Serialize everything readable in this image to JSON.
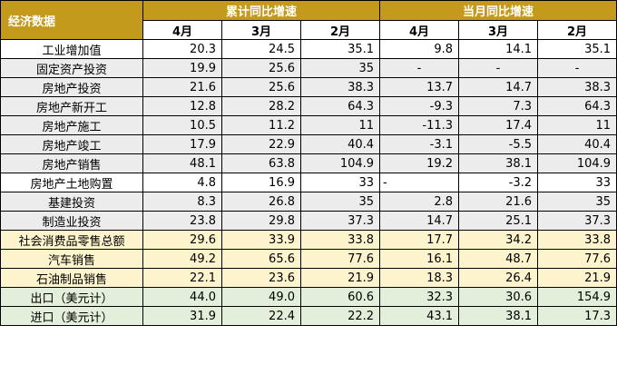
{
  "header": {
    "label": "经济数据",
    "group_cumulative": "累计同比增速",
    "group_monthly": "当月同比增速",
    "months": [
      "4月",
      "3月",
      "2月",
      "4月",
      "3月",
      "2月"
    ]
  },
  "rows": [
    {
      "label": "工业增加值",
      "values": [
        "20.3",
        "24.5",
        "35.1",
        "9.8",
        "14.1",
        "35.1"
      ]
    },
    {
      "label": "固定资产投资",
      "values": [
        "19.9",
        "25.6",
        "35",
        "-",
        "-",
        "-"
      ]
    },
    {
      "label": "房地产投资",
      "values": [
        "21.6",
        "25.6",
        "38.3",
        "13.7",
        "14.7",
        "38.3"
      ]
    },
    {
      "label": "房地产新开工",
      "values": [
        "12.8",
        "28.2",
        "64.3",
        "-9.3",
        "7.3",
        "64.3"
      ]
    },
    {
      "label": "房地产施工",
      "values": [
        "10.5",
        "11.2",
        "11",
        "-11.3",
        "17.4",
        "11"
      ]
    },
    {
      "label": "房地产竣工",
      "values": [
        "17.9",
        "22.9",
        "40.4",
        "-3.1",
        "-5.5",
        "40.4"
      ]
    },
    {
      "label": "房地产销售",
      "values": [
        "48.1",
        "63.8",
        "104.9",
        "19.2",
        "38.1",
        "104.9"
      ]
    },
    {
      "label": "房地产土地购置",
      "values": [
        "4.8",
        "16.9",
        "33",
        "-",
        "-3.2",
        "33"
      ]
    },
    {
      "label": "基建投资",
      "values": [
        "8.3",
        "26.8",
        "35",
        "2.8",
        "21.6",
        "35"
      ]
    },
    {
      "label": "制造业投资",
      "values": [
        "23.8",
        "29.8",
        "37.3",
        "14.7",
        "25.1",
        "37.3"
      ]
    },
    {
      "label": "社会消费品零售总额",
      "values": [
        "29.6",
        "33.9",
        "33.8",
        "17.7",
        "34.2",
        "33.8"
      ]
    },
    {
      "label": "汽车销售",
      "values": [
        "49.2",
        "65.6",
        "77.6",
        "16.1",
        "48.7",
        "77.6"
      ]
    },
    {
      "label": "石油制品销售",
      "values": [
        "22.1",
        "23.6",
        "21.9",
        "18.3",
        "26.4",
        "21.9"
      ]
    },
    {
      "label": "出口（美元计）",
      "values": [
        "44.0",
        "49.0",
        "60.6",
        "32.3",
        "30.6",
        "154.9"
      ]
    },
    {
      "label": "进口（美元计）",
      "values": [
        "31.9",
        "22.4",
        "22.2",
        "43.1",
        "38.1",
        "17.3"
      ]
    }
  ]
}
